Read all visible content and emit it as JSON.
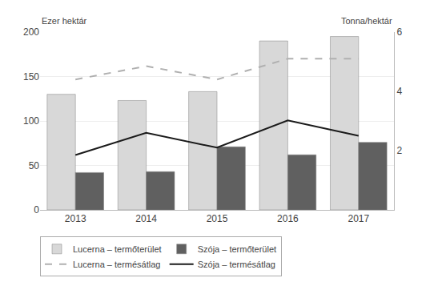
{
  "chart_data": {
    "type": "bar",
    "categories": [
      "2013",
      "2014",
      "2015",
      "2016",
      "2017"
    ],
    "ylabel": "Ezer hektár",
    "y2label": "Tonna/hektár",
    "ylim": [
      0,
      200
    ],
    "yticks": [
      0,
      50,
      100,
      150,
      200
    ],
    "y2lim": [
      0,
      6
    ],
    "y2ticks": [
      2,
      4,
      6
    ],
    "grid": true,
    "legend": "bottom",
    "series": [
      {
        "name": "Lucerna – termőterület",
        "type": "bar",
        "color": "#d8d8d8",
        "values": [
          130,
          123,
          133,
          190,
          195
        ]
      },
      {
        "name": "Szója – termőterület",
        "type": "bar",
        "color": "#606060",
        "values": [
          42,
          43,
          71,
          62,
          76
        ]
      },
      {
        "name": "Lucerna – termésátlag",
        "type": "line",
        "axis": "y2",
        "color": "#b0b0b0",
        "line_style": "dashed",
        "values": [
          4.4,
          4.85,
          4.4,
          5.1,
          5.1
        ]
      },
      {
        "name": "Szója – termésátlag",
        "type": "line",
        "axis": "y2",
        "color": "#1a1a1a",
        "line_style": "solid",
        "values": [
          1.85,
          2.6,
          2.1,
          3.02,
          2.5
        ]
      }
    ]
  }
}
